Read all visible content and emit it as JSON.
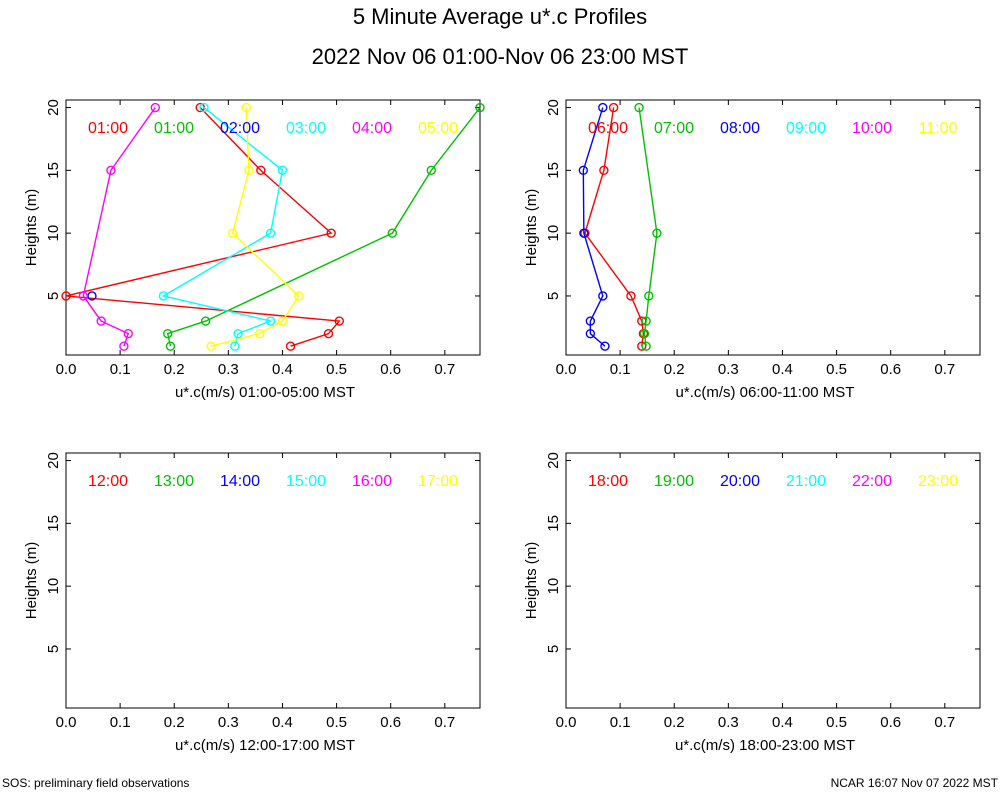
{
  "header": {
    "title": "5 Minute Average u*.c Profiles",
    "subtitle": "2022 Nov 06 01:00-Nov 06 23:00 MST"
  },
  "footer": {
    "left": "SOS: preliminary field observations",
    "right": "NCAR 16:07 Nov 07 2022 MST"
  },
  "chart_data": [
    {
      "type": "line",
      "xlabel": "u*.c(m/s) 01:00-05:00 MST",
      "ylabel": "Heights (m)",
      "xlim": [
        0,
        0.765
      ],
      "ylim": [
        0.3,
        20.6
      ],
      "xticks": [
        "0.0",
        "0.1",
        "0.2",
        "0.3",
        "0.4",
        "0.5",
        "0.6",
        "0.7"
      ],
      "yticks": [
        "5",
        "10",
        "15",
        "20"
      ],
      "legend": [
        {
          "label": "01:00",
          "color": "#ff0000"
        },
        {
          "label": "01:00",
          "color": "#00c000"
        },
        {
          "label": "02:00",
          "color": "#0000ff"
        },
        {
          "label": "03:00",
          "color": "#00ffff"
        },
        {
          "label": "04:00",
          "color": "#ff00ff"
        },
        {
          "label": "05:00",
          "color": "#ffff00"
        }
      ],
      "series": [
        {
          "name": "01:00",
          "color": "#ff0000",
          "points": [
            [
              0.415,
              1
            ],
            [
              0.485,
              2
            ],
            [
              0.505,
              3
            ],
            [
              0.0,
              5
            ],
            [
              0.49,
              10
            ],
            [
              0.36,
              15
            ],
            [
              0.248,
              20
            ]
          ]
        },
        {
          "name": "01:00",
          "color": "#00c000",
          "points": [
            [
              0.193,
              1
            ],
            [
              0.188,
              2
            ],
            [
              0.258,
              3
            ],
            [
              0.603,
              10
            ],
            [
              0.675,
              15
            ],
            [
              0.765,
              20
            ]
          ]
        },
        {
          "name": "02:00",
          "color": "#0000ff",
          "points": [
            [
              0.048,
              5
            ]
          ]
        },
        {
          "name": "03:00",
          "color": "#00ffff",
          "points": [
            [
              0.312,
              1
            ],
            [
              0.318,
              2
            ],
            [
              0.378,
              3
            ],
            [
              0.18,
              5
            ],
            [
              0.378,
              10
            ],
            [
              0.4,
              15
            ],
            [
              0.255,
              20
            ]
          ]
        },
        {
          "name": "04:00",
          "color": "#ff00ff",
          "points": [
            [
              0.107,
              1
            ],
            [
              0.115,
              2
            ],
            [
              0.065,
              3
            ],
            [
              0.032,
              5
            ],
            [
              0.083,
              15
            ],
            [
              0.165,
              20
            ]
          ]
        },
        {
          "name": "05:00",
          "color": "#ffff00",
          "points": [
            [
              0.268,
              1
            ],
            [
              0.358,
              2
            ],
            [
              0.4,
              3
            ],
            [
              0.43,
              5
            ],
            [
              0.308,
              10
            ],
            [
              0.338,
              15
            ],
            [
              0.333,
              20
            ]
          ]
        }
      ]
    },
    {
      "type": "line",
      "xlabel": "u*.c(m/s) 06:00-11:00 MST",
      "ylabel": "Heights (m)",
      "xlim": [
        0,
        0.765
      ],
      "ylim": [
        0.3,
        20.6
      ],
      "xticks": [
        "0.0",
        "0.1",
        "0.2",
        "0.3",
        "0.4",
        "0.5",
        "0.6",
        "0.7"
      ],
      "yticks": [
        "5",
        "10",
        "15",
        "20"
      ],
      "legend": [
        {
          "label": "06:00",
          "color": "#ff0000"
        },
        {
          "label": "07:00",
          "color": "#00c000"
        },
        {
          "label": "08:00",
          "color": "#0000ff"
        },
        {
          "label": "09:00",
          "color": "#00ffff"
        },
        {
          "label": "10:00",
          "color": "#ff00ff"
        },
        {
          "label": "11:00",
          "color": "#ffff00"
        }
      ],
      "series": [
        {
          "name": "06:00",
          "color": "#ff0000",
          "points": [
            [
              0.14,
              1
            ],
            [
              0.143,
              2
            ],
            [
              0.14,
              3
            ],
            [
              0.12,
              5
            ],
            [
              0.035,
              10
            ],
            [
              0.07,
              15
            ],
            [
              0.088,
              20
            ]
          ]
        },
        {
          "name": "07:00",
          "color": "#00c000",
          "points": [
            [
              0.148,
              1
            ],
            [
              0.145,
              2
            ],
            [
              0.148,
              3
            ],
            [
              0.153,
              5
            ],
            [
              0.168,
              10
            ],
            [
              0.135,
              20
            ]
          ]
        },
        {
          "name": "08:00",
          "color": "#0000ff",
          "points": [
            [
              0.072,
              1
            ],
            [
              0.045,
              2
            ],
            [
              0.045,
              3
            ],
            [
              0.068,
              5
            ],
            [
              0.033,
              10
            ],
            [
              0.032,
              15
            ],
            [
              0.068,
              20
            ]
          ]
        }
      ]
    },
    {
      "type": "line",
      "xlabel": "u*.c(m/s) 12:00-17:00 MST",
      "ylabel": "Heights (m)",
      "xlim": [
        0,
        0.765
      ],
      "ylim": [
        0.3,
        20.6
      ],
      "xticks": [
        "0.0",
        "0.1",
        "0.2",
        "0.3",
        "0.4",
        "0.5",
        "0.6",
        "0.7"
      ],
      "yticks": [
        "5",
        "10",
        "15",
        "20"
      ],
      "legend": [
        {
          "label": "12:00",
          "color": "#ff0000"
        },
        {
          "label": "13:00",
          "color": "#00c000"
        },
        {
          "label": "14:00",
          "color": "#0000ff"
        },
        {
          "label": "15:00",
          "color": "#00ffff"
        },
        {
          "label": "16:00",
          "color": "#ff00ff"
        },
        {
          "label": "17:00",
          "color": "#ffff00"
        }
      ],
      "series": []
    },
    {
      "type": "line",
      "xlabel": "u*.c(m/s) 18:00-23:00 MST",
      "ylabel": "Heights (m)",
      "xlim": [
        0,
        0.765
      ],
      "ylim": [
        0.3,
        20.6
      ],
      "xticks": [
        "0.0",
        "0.1",
        "0.2",
        "0.3",
        "0.4",
        "0.5",
        "0.6",
        "0.7"
      ],
      "yticks": [
        "5",
        "10",
        "15",
        "20"
      ],
      "legend": [
        {
          "label": "18:00",
          "color": "#ff0000"
        },
        {
          "label": "19:00",
          "color": "#00c000"
        },
        {
          "label": "20:00",
          "color": "#0000ff"
        },
        {
          "label": "21:00",
          "color": "#00ffff"
        },
        {
          "label": "22:00",
          "color": "#ff00ff"
        },
        {
          "label": "23:00",
          "color": "#ffff00"
        }
      ],
      "series": []
    }
  ]
}
